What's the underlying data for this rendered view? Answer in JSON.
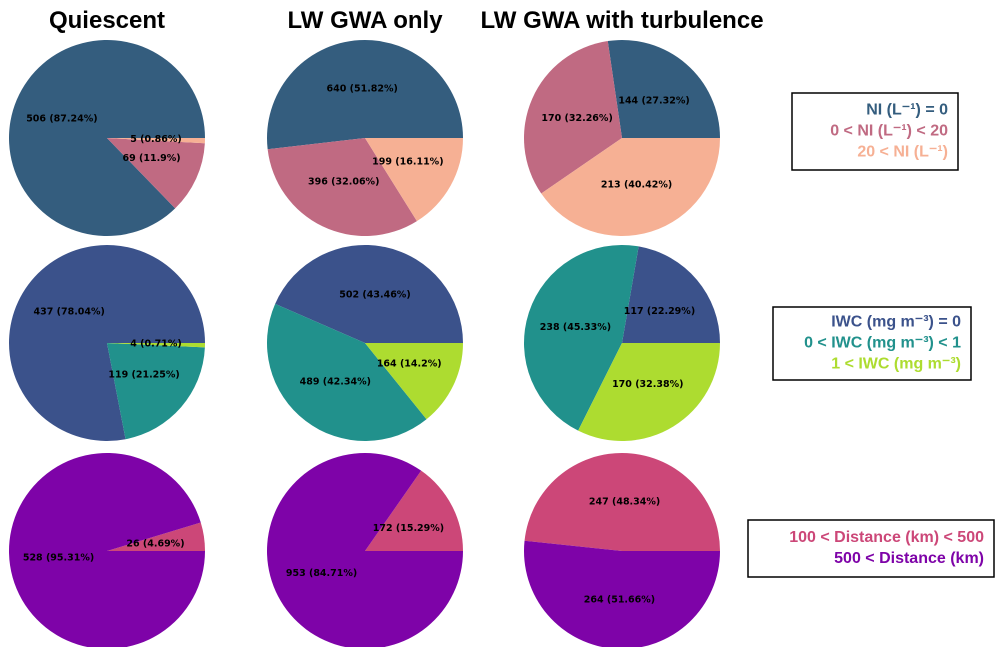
{
  "chart_data": [
    {
      "type": "pie",
      "categories": [
        "NI (L⁻¹) = 0",
        "0 < NI (L⁻¹) < 20",
        "20 < NI (L⁻¹)"
      ],
      "colors": [
        "#345d7e",
        "#c06a82",
        "#f6b094"
      ],
      "series": [
        {
          "name": "Quiescent",
          "values": [
            506,
            69,
            5
          ],
          "value_labels": [
            "506 (87.24%)",
            "69 (11.9%)",
            "5 (0.86%)"
          ]
        },
        {
          "name": "LW GWA only",
          "values": [
            640,
            396,
            199
          ],
          "value_labels": [
            "640 (51.82%)",
            "396 (32.06%)",
            "199 (16.11%)"
          ]
        },
        {
          "name": "LW GWA with turbulence",
          "values": [
            144,
            170,
            213
          ],
          "value_labels": [
            "144 (27.32%)",
            "170 (32.26%)",
            "213 (40.42%)"
          ]
        }
      ]
    },
    {
      "type": "pie",
      "categories": [
        "IWC (mg m⁻³) = 0",
        "0 < IWC (mg m⁻³) < 1",
        "1 < IWC (mg m⁻³)"
      ],
      "colors": [
        "#3b528b",
        "#21918c",
        "#addc30"
      ],
      "series": [
        {
          "values": [
            437,
            119,
            4
          ],
          "value_labels": [
            "437 (78.04%)",
            "119 (21.25%)",
            "4 (0.71%)"
          ]
        },
        {
          "values": [
            502,
            489,
            164
          ],
          "value_labels": [
            "502 (43.46%)",
            "489 (42.34%)",
            "164 (14.2%)"
          ]
        },
        {
          "values": [
            117,
            238,
            170
          ],
          "value_labels": [
            "117 (22.29%)",
            "238 (45.33%)",
            "170 (32.38%)"
          ]
        }
      ]
    },
    {
      "type": "pie",
      "categories": [
        "100 < Distance (km) < 500",
        "500 < Distance (km)"
      ],
      "colors": [
        "#cc4778",
        "#7e03a8"
      ],
      "series": [
        {
          "values": [
            26,
            528
          ],
          "value_labels": [
            "26 (4.69%)",
            "528 (95.31%)"
          ]
        },
        {
          "values": [
            172,
            953
          ],
          "value_labels": [
            "172 (15.29%)",
            "953 (84.71%)"
          ]
        },
        {
          "values": [
            247,
            264
          ],
          "value_labels": [
            "247 (48.34%)",
            "264 (51.66%)"
          ]
        }
      ]
    }
  ]
}
